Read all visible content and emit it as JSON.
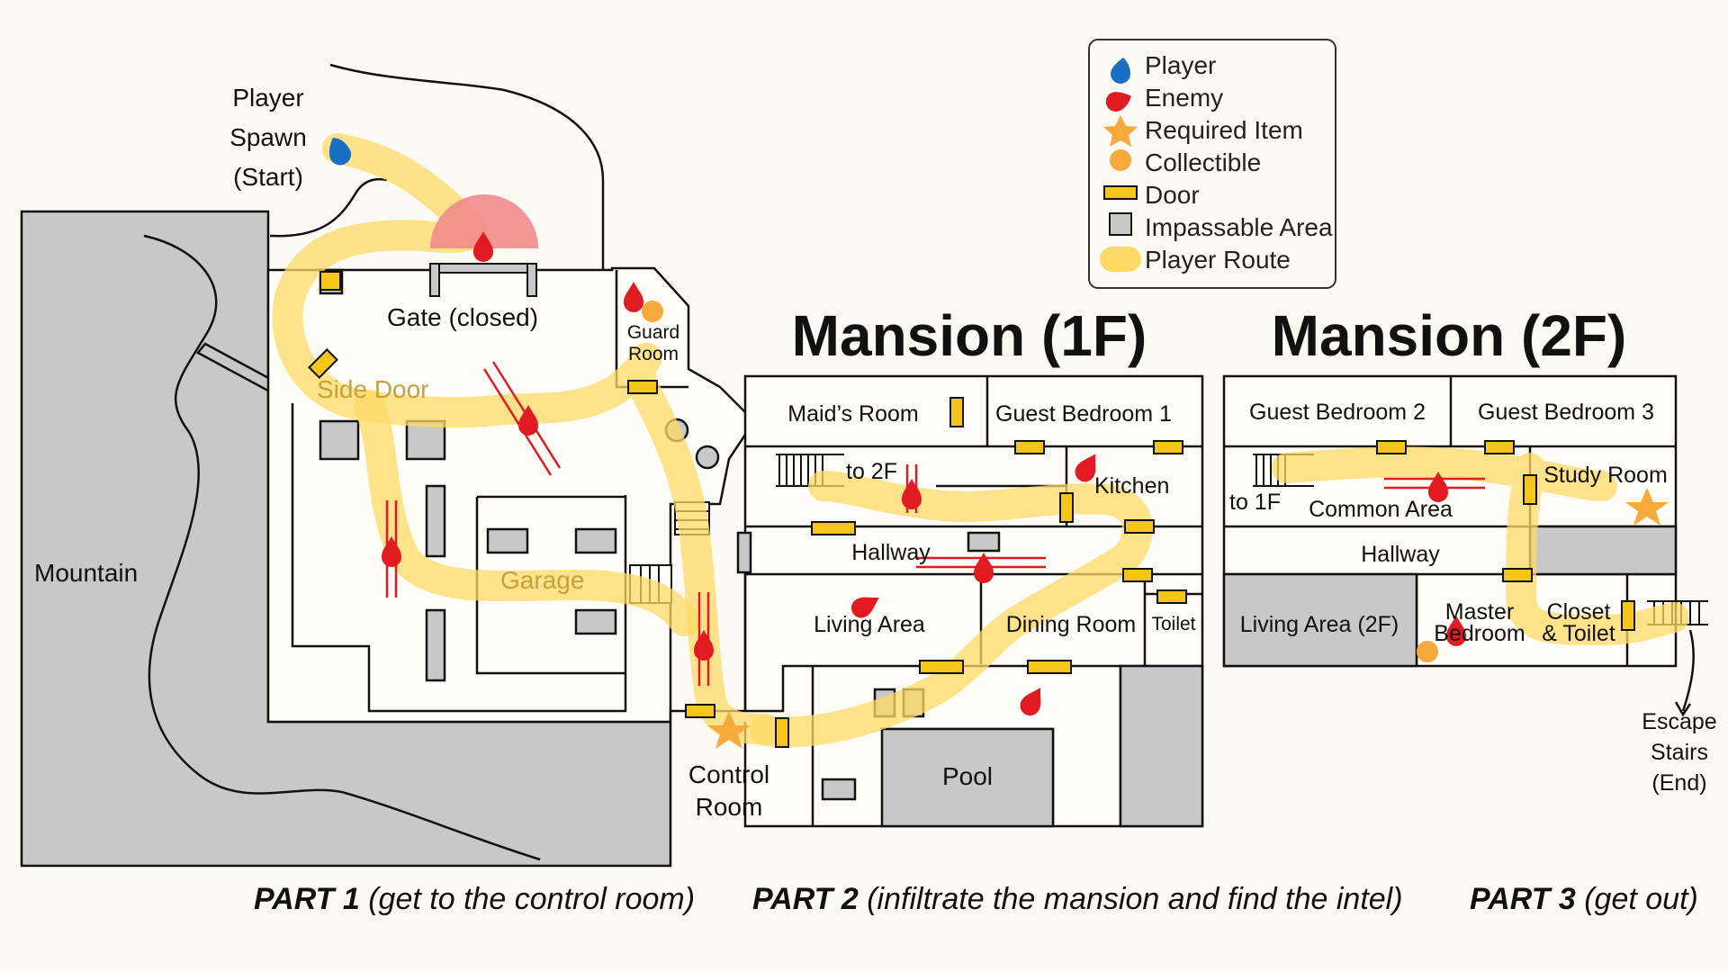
{
  "titles": {
    "mansion_1f": "Mansion (1F)",
    "mansion_2f": "Mansion (2F)"
  },
  "legend": [
    {
      "icon": "player-marker",
      "label": "Player",
      "color": "#1a6fc4"
    },
    {
      "icon": "enemy-marker",
      "label": "Enemy",
      "color": "#e21b23"
    },
    {
      "icon": "star",
      "label": "Required Item",
      "color": "#f7a93b"
    },
    {
      "icon": "circle",
      "label": "Collectible",
      "color": "#f7a93b"
    },
    {
      "icon": "door",
      "label": "Door",
      "color": "#f5c518"
    },
    {
      "icon": "gray-square",
      "label": "Impassable Area",
      "color": "#c8c8c8"
    },
    {
      "icon": "route-swatch",
      "label": "Player Route",
      "color": "#ffd966"
    }
  ],
  "labels": {
    "spawn": [
      "Player",
      "Spawn",
      "(Start)"
    ],
    "mountain": "Mountain",
    "gate": "Gate (closed)",
    "guard_room": [
      "Guard",
      "Room"
    ],
    "side_door": "Side Door",
    "garage": "Garage",
    "control_room": [
      "Control",
      "Room"
    ],
    "pool": "Pool",
    "maids_room": "Maid’s Room",
    "guest_bedroom_1": "Guest Bedroom 1",
    "to_2f": "to 2F",
    "kitchen": "Kitchen",
    "hallway_1f": "Hallway",
    "living_area": "Living Area",
    "dining_room": "Dining Room",
    "toilet": "Toilet",
    "guest_bedroom_2": "Guest Bedroom 2",
    "guest_bedroom_3": "Guest Bedroom 3",
    "to_1f": "to 1F",
    "common_area": "Common Area",
    "study_room": "Study Room",
    "hallway_2f": "Hallway",
    "living_area_2f": "Living Area (2F)",
    "master_bedroom": [
      "Master",
      "Bedroom"
    ],
    "closet_toilet": [
      "Closet",
      "& Toilet"
    ],
    "escape": [
      "Escape",
      "Stairs",
      "(End)"
    ]
  },
  "parts": [
    {
      "bold": "PART 1",
      "text": " (get to the control room)"
    },
    {
      "bold": "PART 2",
      "text": " (infiltrate the mansion and find the intel)"
    },
    {
      "bold": "PART 3",
      "text": " (get out)"
    }
  ]
}
